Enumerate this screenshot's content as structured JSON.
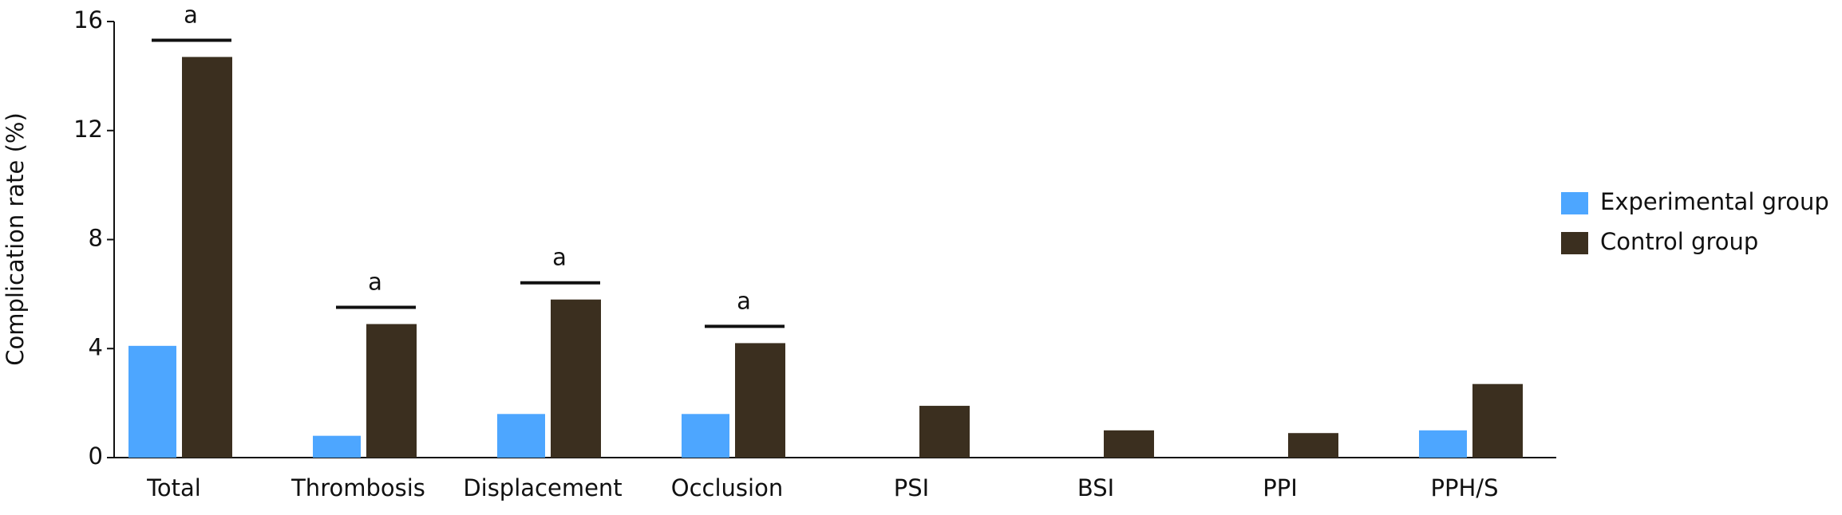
{
  "chart_data": {
    "type": "bar",
    "y_label": "Complication rate (%)",
    "categories": [
      "Total",
      "Thrombosis",
      "Displacement",
      "Occlusion",
      "PSI",
      "BSI",
      "PPI",
      "PPH/S"
    ],
    "series": [
      {
        "name": "Experimental group",
        "color": "#4da6ff",
        "values": [
          4.1,
          0.8,
          1.6,
          1.6,
          0,
          0,
          0,
          1.0
        ]
      },
      {
        "name": "Control group",
        "color": "#3b2f1f",
        "values": [
          14.7,
          4.9,
          5.8,
          4.2,
          1.9,
          1.0,
          0.9,
          2.7
        ]
      }
    ],
    "significance": [
      "a",
      "a",
      "a",
      "a",
      null,
      null,
      null,
      null
    ],
    "ylim": [
      0,
      16
    ],
    "yticks": [
      0,
      4,
      8,
      12,
      16
    ],
    "grid": false,
    "legend": "right"
  }
}
